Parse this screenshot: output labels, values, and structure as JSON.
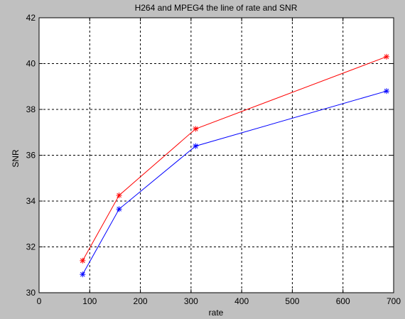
{
  "chart_data": {
    "type": "line",
    "title": "H264 and MPEG4 the line of rate and SNR",
    "xlabel": "rate",
    "ylabel": "SNR",
    "xlim": [
      0,
      700
    ],
    "ylim": [
      30,
      42
    ],
    "xticks": [
      0,
      100,
      200,
      300,
      400,
      500,
      600,
      700
    ],
    "yticks": [
      30,
      32,
      34,
      36,
      38,
      40,
      42
    ],
    "grid": true,
    "grid_style": "dashed",
    "background_color": "#c0c0c0",
    "axes_color": "#ffffff",
    "marker": "asterisk",
    "series": [
      {
        "color": "#ff0000",
        "x": [
          86,
          158,
          309,
          686
        ],
        "y": [
          31.4,
          34.25,
          37.15,
          40.3
        ]
      },
      {
        "color": "#0000ff",
        "x": [
          86,
          158,
          309,
          686
        ],
        "y": [
          30.8,
          33.65,
          36.4,
          38.8
        ]
      }
    ]
  }
}
